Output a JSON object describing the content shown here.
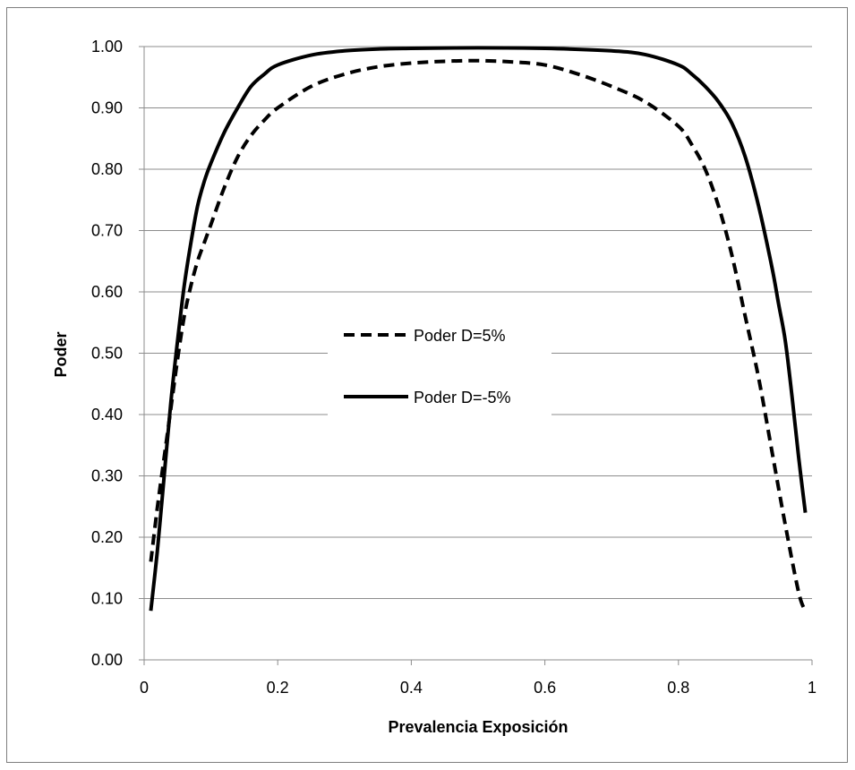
{
  "chart_data": {
    "type": "line",
    "xlabel": "Prevalencia Exposición",
    "ylabel": "Poder",
    "xlim": [
      0,
      1
    ],
    "ylim": [
      0,
      1
    ],
    "x_ticks": [
      0,
      0.2,
      0.4,
      0.6,
      0.8,
      1
    ],
    "x_tick_labels": [
      "0",
      "0.2",
      "0.4",
      "0.6",
      "0.8",
      "1"
    ],
    "y_ticks": [
      0,
      0.1,
      0.2,
      0.3,
      0.4,
      0.5,
      0.6,
      0.7,
      0.8,
      0.9,
      1.0
    ],
    "y_tick_labels": [
      "0.00",
      "0.10",
      "0.20",
      "0.30",
      "0.40",
      "0.50",
      "0.60",
      "0.70",
      "0.80",
      "0.90",
      "1.00"
    ],
    "grid": "horizontal",
    "legend_position": "center",
    "series": [
      {
        "name": "Poder D=5%",
        "style": "dashed",
        "color": "#000000",
        "x": [
          0.01,
          0.02,
          0.03,
          0.04,
          0.05,
          0.06,
          0.07,
          0.08,
          0.09,
          0.1,
          0.12,
          0.14,
          0.16,
          0.18,
          0.2,
          0.25,
          0.3,
          0.35,
          0.4,
          0.45,
          0.5,
          0.55,
          0.6,
          0.65,
          0.7,
          0.75,
          0.8,
          0.82,
          0.84,
          0.86,
          0.88,
          0.9,
          0.92,
          0.94,
          0.96,
          0.98,
          0.99
        ],
        "y": [
          0.16,
          0.25,
          0.33,
          0.41,
          0.49,
          0.56,
          0.61,
          0.65,
          0.68,
          0.71,
          0.77,
          0.82,
          0.855,
          0.88,
          0.9,
          0.935,
          0.955,
          0.967,
          0.973,
          0.976,
          0.977,
          0.975,
          0.97,
          0.955,
          0.935,
          0.91,
          0.87,
          0.84,
          0.8,
          0.74,
          0.66,
          0.56,
          0.46,
          0.34,
          0.22,
          0.11,
          0.08
        ]
      },
      {
        "name": "Poder D=-5%",
        "style": "solid",
        "color": "#000000",
        "x": [
          0.01,
          0.02,
          0.03,
          0.04,
          0.05,
          0.06,
          0.07,
          0.08,
          0.09,
          0.1,
          0.12,
          0.14,
          0.16,
          0.18,
          0.2,
          0.25,
          0.3,
          0.35,
          0.4,
          0.5,
          0.6,
          0.7,
          0.75,
          0.8,
          0.82,
          0.84,
          0.86,
          0.88,
          0.9,
          0.92,
          0.94,
          0.95,
          0.96,
          0.97,
          0.98,
          0.99
        ],
        "y": [
          0.08,
          0.18,
          0.3,
          0.42,
          0.52,
          0.61,
          0.68,
          0.74,
          0.78,
          0.81,
          0.86,
          0.9,
          0.935,
          0.955,
          0.97,
          0.986,
          0.993,
          0.996,
          0.997,
          0.998,
          0.997,
          0.993,
          0.987,
          0.97,
          0.955,
          0.935,
          0.91,
          0.875,
          0.82,
          0.74,
          0.64,
          0.58,
          0.52,
          0.43,
          0.33,
          0.24
        ]
      }
    ]
  }
}
